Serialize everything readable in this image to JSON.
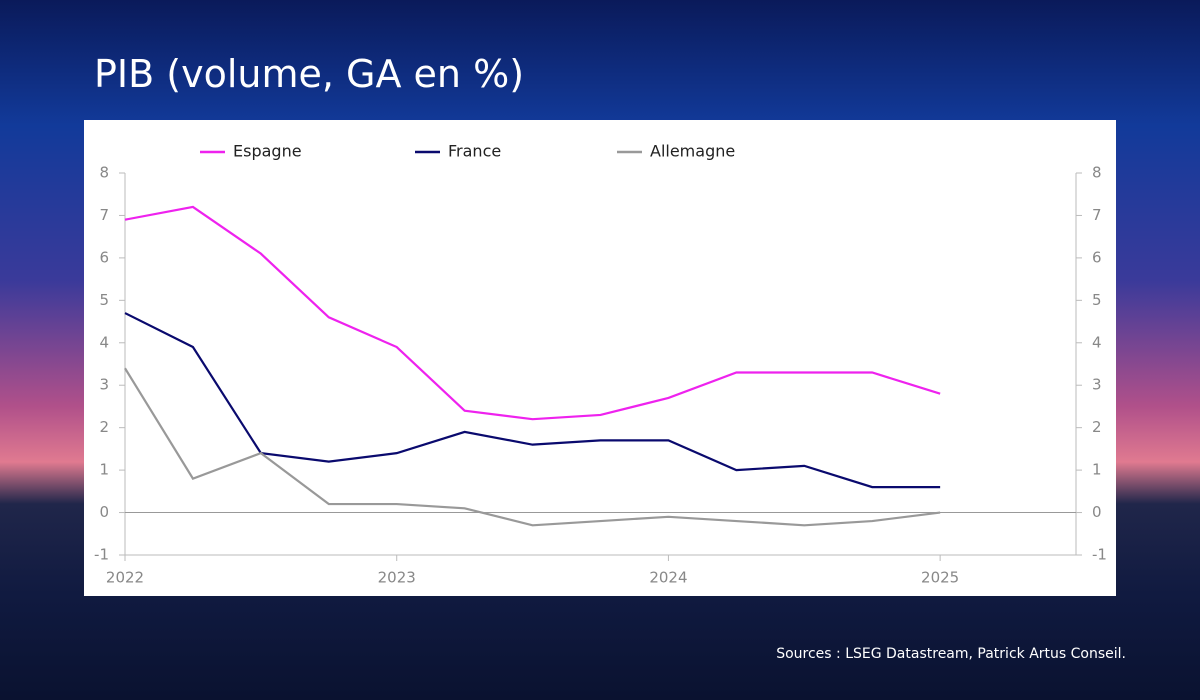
{
  "chart_data": {
    "type": "line",
    "title": "PIB (volume, GA en %)",
    "source": "Sources : LSEG Datastream, Patrick Artus Conseil.",
    "x": [
      2022,
      2022.25,
      2022.5,
      2022.75,
      2023,
      2023.25,
      2023.5,
      2023.75,
      2024,
      2024.25,
      2024.5,
      2024.75,
      2025
    ],
    "xlim": [
      2022,
      2025.5
    ],
    "xticks": [
      2022,
      2023,
      2024,
      2025
    ],
    "ylim": [
      -1,
      8
    ],
    "yticks": [
      -1,
      0,
      1,
      2,
      3,
      4,
      5,
      6,
      7,
      8
    ],
    "y2lim": [
      -1,
      8
    ],
    "y2ticks": [
      -1,
      0,
      1,
      2,
      3,
      4,
      5,
      6,
      7,
      8
    ],
    "legend": "top",
    "series": [
      {
        "name": "Espagne",
        "color": "#ee22ee",
        "values": [
          6.9,
          7.2,
          6.1,
          4.6,
          3.9,
          2.4,
          2.2,
          2.3,
          2.7,
          3.3,
          3.3,
          3.3,
          2.8
        ]
      },
      {
        "name": "France",
        "color": "#0a0a6e",
        "values": [
          4.7,
          3.9,
          1.4,
          1.2,
          1.4,
          1.9,
          1.6,
          1.7,
          1.7,
          1.0,
          1.1,
          0.6,
          0.6
        ]
      },
      {
        "name": "Allemagne",
        "color": "#999999",
        "values": [
          3.4,
          0.8,
          1.4,
          0.2,
          0.2,
          0.1,
          -0.3,
          -0.2,
          -0.1,
          -0.2,
          -0.3,
          -0.2,
          0
        ]
      }
    ]
  }
}
